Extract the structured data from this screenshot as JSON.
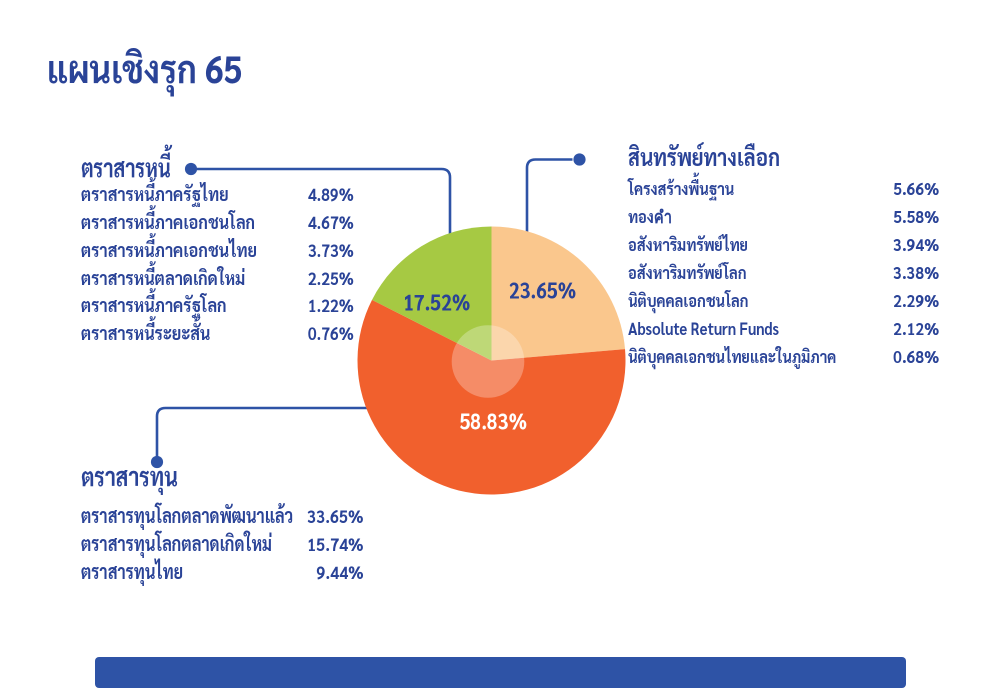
{
  "title": "แผนเชิงรุก 65",
  "chart_data": {
    "type": "pie",
    "title": "แผนเชิงรุก 65",
    "unit": "percent",
    "start_angle_deg": 0,
    "clockwise": true,
    "slices": [
      {
        "name": "สินทรัพย์ทางเลือก",
        "value": 23.65,
        "label": "23.65%",
        "color": "#FAC78D"
      },
      {
        "name": "ตราสารทุน",
        "value": 58.83,
        "label": "58.83%",
        "color": "#F1602D"
      },
      {
        "name": "ตราสารหนี้",
        "value": 17.52,
        "label": "17.52%",
        "color": "#A6C943"
      }
    ]
  },
  "groups": {
    "fixed_income": {
      "header": "ตราสารหนี้",
      "items": [
        {
          "label": "ตราสารหนี้ภาครัฐไทย",
          "value": "4.89%"
        },
        {
          "label": "ตราสารหนี้ภาคเอกชนโลก",
          "value": "4.67%"
        },
        {
          "label": "ตราสารหนี้ภาคเอกชนไทย",
          "value": "3.73%"
        },
        {
          "label": "ตราสารหนี้ตลาดเกิดใหม่",
          "value": "2.25%"
        },
        {
          "label": "ตราสารหนี้ภาครัฐโลก",
          "value": "1.22%"
        },
        {
          "label": "ตราสารหนี้ระยะสั้น",
          "value": "0.76%"
        }
      ]
    },
    "alternative_assets": {
      "header": "สินทรัพย์ทางเลือก",
      "items": [
        {
          "label": "โครงสร้างพื้นฐาน",
          "value": "5.66%"
        },
        {
          "label": "ทองคำ",
          "value": "5.58%"
        },
        {
          "label": "อสังหาริมทรัพย์ไทย",
          "value": "3.94%"
        },
        {
          "label": "อสังหาริมทรัพย์โลก",
          "value": "3.38%"
        },
        {
          "label": "นิติบุคคลเอกชนโลก",
          "value": "2.29%"
        },
        {
          "label": "Absolute Return Funds",
          "value": "2.12%"
        },
        {
          "label": "นิติบุคคลเอกชนไทยและในภูมิภาค",
          "value": "0.68%"
        }
      ]
    },
    "equity": {
      "header": "ตราสารทุน",
      "items": [
        {
          "label": "ตราสารทุนโลกตลาดพัฒนาแล้ว",
          "value": "33.65%"
        },
        {
          "label": "ตราสารทุนโลกตลาดเกิดใหม่",
          "value": "15.74%"
        },
        {
          "label": "ตราสารทุนไทย",
          "value": "9.44%"
        }
      ]
    }
  },
  "colors": {
    "text_navy": "#2A4397",
    "connector_blue": "#2E53A6",
    "footer_bar_blue": "#2E53A6",
    "slice_orange": "#F1602D",
    "slice_peach": "#FAC78D",
    "slice_green": "#A6C943",
    "background": "#FFFFFF"
  }
}
